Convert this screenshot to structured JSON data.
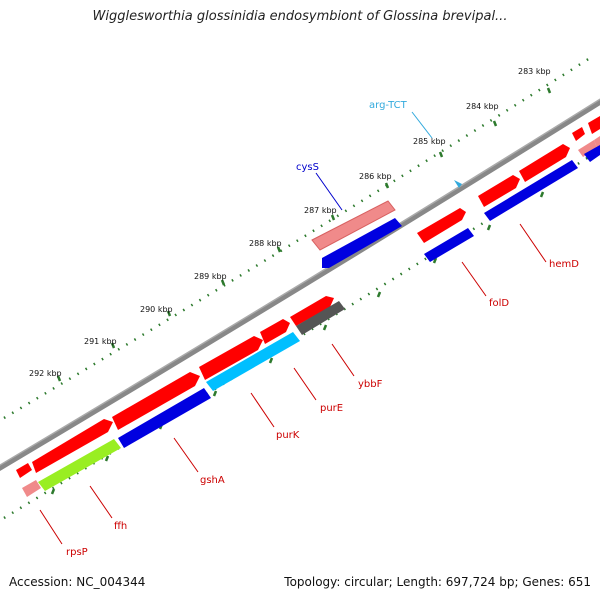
{
  "title": "Wigglesworthia glossinidia endosymbiont of Glossina brevipal...",
  "footer": {
    "accession": "Accession: NC_004344",
    "stats": "Topology: circular; Length: 697,724 bp; Genes: 651"
  },
  "ticks": [
    "283 kbp",
    "284 kbp",
    "285 kbp",
    "286 kbp",
    "287 kbp",
    "288 kbp",
    "289 kbp",
    "290 kbp",
    "291 kbp",
    "292 kbp"
  ],
  "genes": {
    "cysS": "cysS",
    "argTCT": "arg-TCT",
    "hemD": "hemD",
    "folD": "folD",
    "ybbF": "ybbF",
    "purE": "purE",
    "purK": "purK",
    "gshA": "gshA",
    "ffh": "ffh",
    "rpsP": "rpsP"
  },
  "colors": {
    "forward_cds": "#ff0000",
    "forward_cds_light": "#f08a8a",
    "reverse_cds": "#0000e0",
    "cyan_feature": "#00bfff",
    "lime_feature": "#99ee22",
    "gray_feature": "#555555",
    "backbone": "#888888",
    "tick_green": "#2d7a2d",
    "label_red": "#cc0000",
    "label_blue": "#0000cc",
    "label_cyan": "#33aadd"
  }
}
